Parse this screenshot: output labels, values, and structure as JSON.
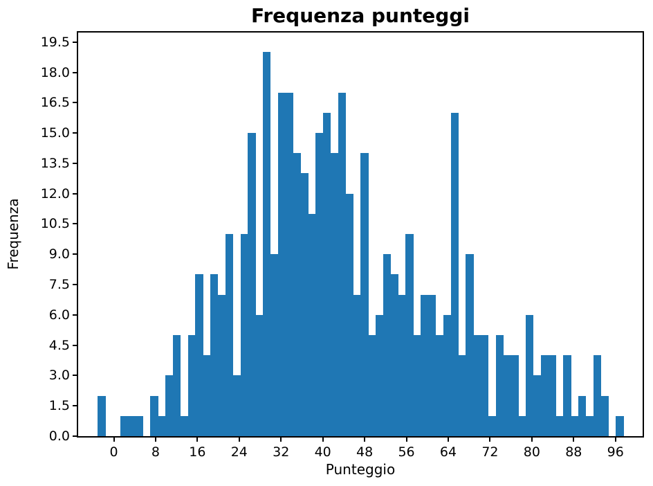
{
  "chart": {
    "title": "Frequenza punteggi",
    "xlabel": "Punteggio",
    "ylabel": "Frequenza"
  },
  "chart_data": {
    "type": "bar",
    "subtype": "histogram",
    "title": "Frequenza punteggi",
    "xlabel": "Punteggio",
    "ylabel": "Frequenza",
    "bin_start": -3.07,
    "bin_width": 1.4372,
    "values": [
      2,
      0,
      0,
      1,
      1,
      1,
      0,
      2,
      1,
      3,
      5,
      1,
      5,
      8,
      4,
      8,
      7,
      10,
      3,
      10,
      15,
      6,
      19,
      9,
      17,
      17,
      14,
      13,
      11,
      15,
      16,
      14,
      17,
      12,
      7,
      14,
      5,
      6,
      9,
      8,
      7,
      10,
      5,
      7,
      7,
      5,
      6,
      16,
      4,
      9,
      5,
      5,
      1,
      5,
      4,
      4,
      1,
      6,
      3,
      4,
      4,
      1,
      4,
      1,
      2,
      1,
      4,
      2,
      0,
      1
    ],
    "xticks": [
      0,
      8,
      16,
      24,
      32,
      40,
      48,
      56,
      64,
      72,
      80,
      88,
      96
    ],
    "yticks": [
      0.0,
      1.5,
      3.0,
      4.5,
      6.0,
      7.5,
      9.0,
      10.5,
      12.0,
      13.5,
      15.0,
      16.5,
      18.0,
      19.5
    ],
    "xlim": [
      -6.82,
      101.2
    ],
    "ylim": [
      0,
      19.97
    ],
    "bar_color": "#1f77b4",
    "grid": false,
    "legend": null
  }
}
